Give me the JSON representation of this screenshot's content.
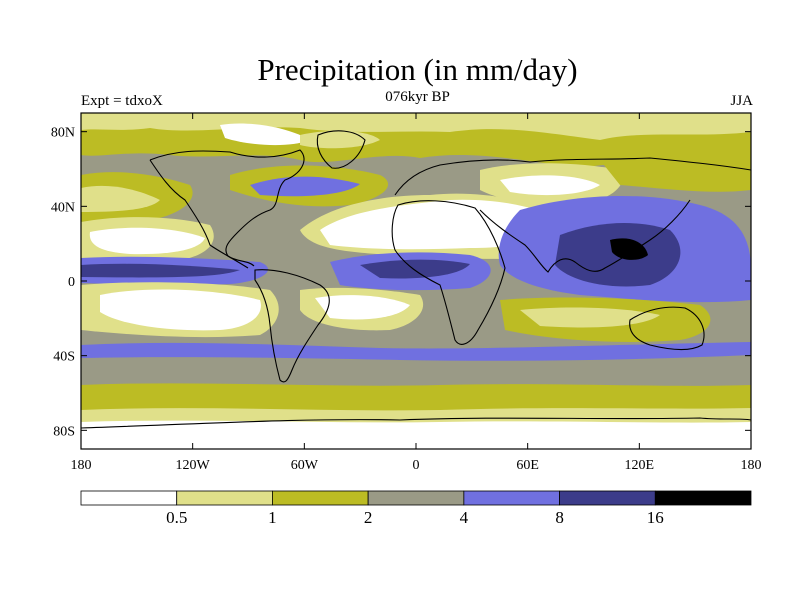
{
  "title": "Precipitation (in mm/day)",
  "experiment_label": "Expt = tdxoX",
  "period_label": "076kyr BP",
  "season_label": "JJA",
  "map": {
    "lon_ticks": [
      "180",
      "120W",
      "60W",
      "0",
      "60E",
      "120E",
      "180"
    ],
    "lat_ticks": [
      "80N",
      "40N",
      "0",
      "40S",
      "80S"
    ]
  },
  "colorbar": {
    "labels": [
      "0.5",
      "1",
      "2",
      "4",
      "8",
      "16"
    ],
    "colors": [
      "#ffffff",
      "#e0e08a",
      "#bcbc24",
      "#9a9a86",
      "#7070e0",
      "#3c3c8a",
      "#000000"
    ]
  }
}
